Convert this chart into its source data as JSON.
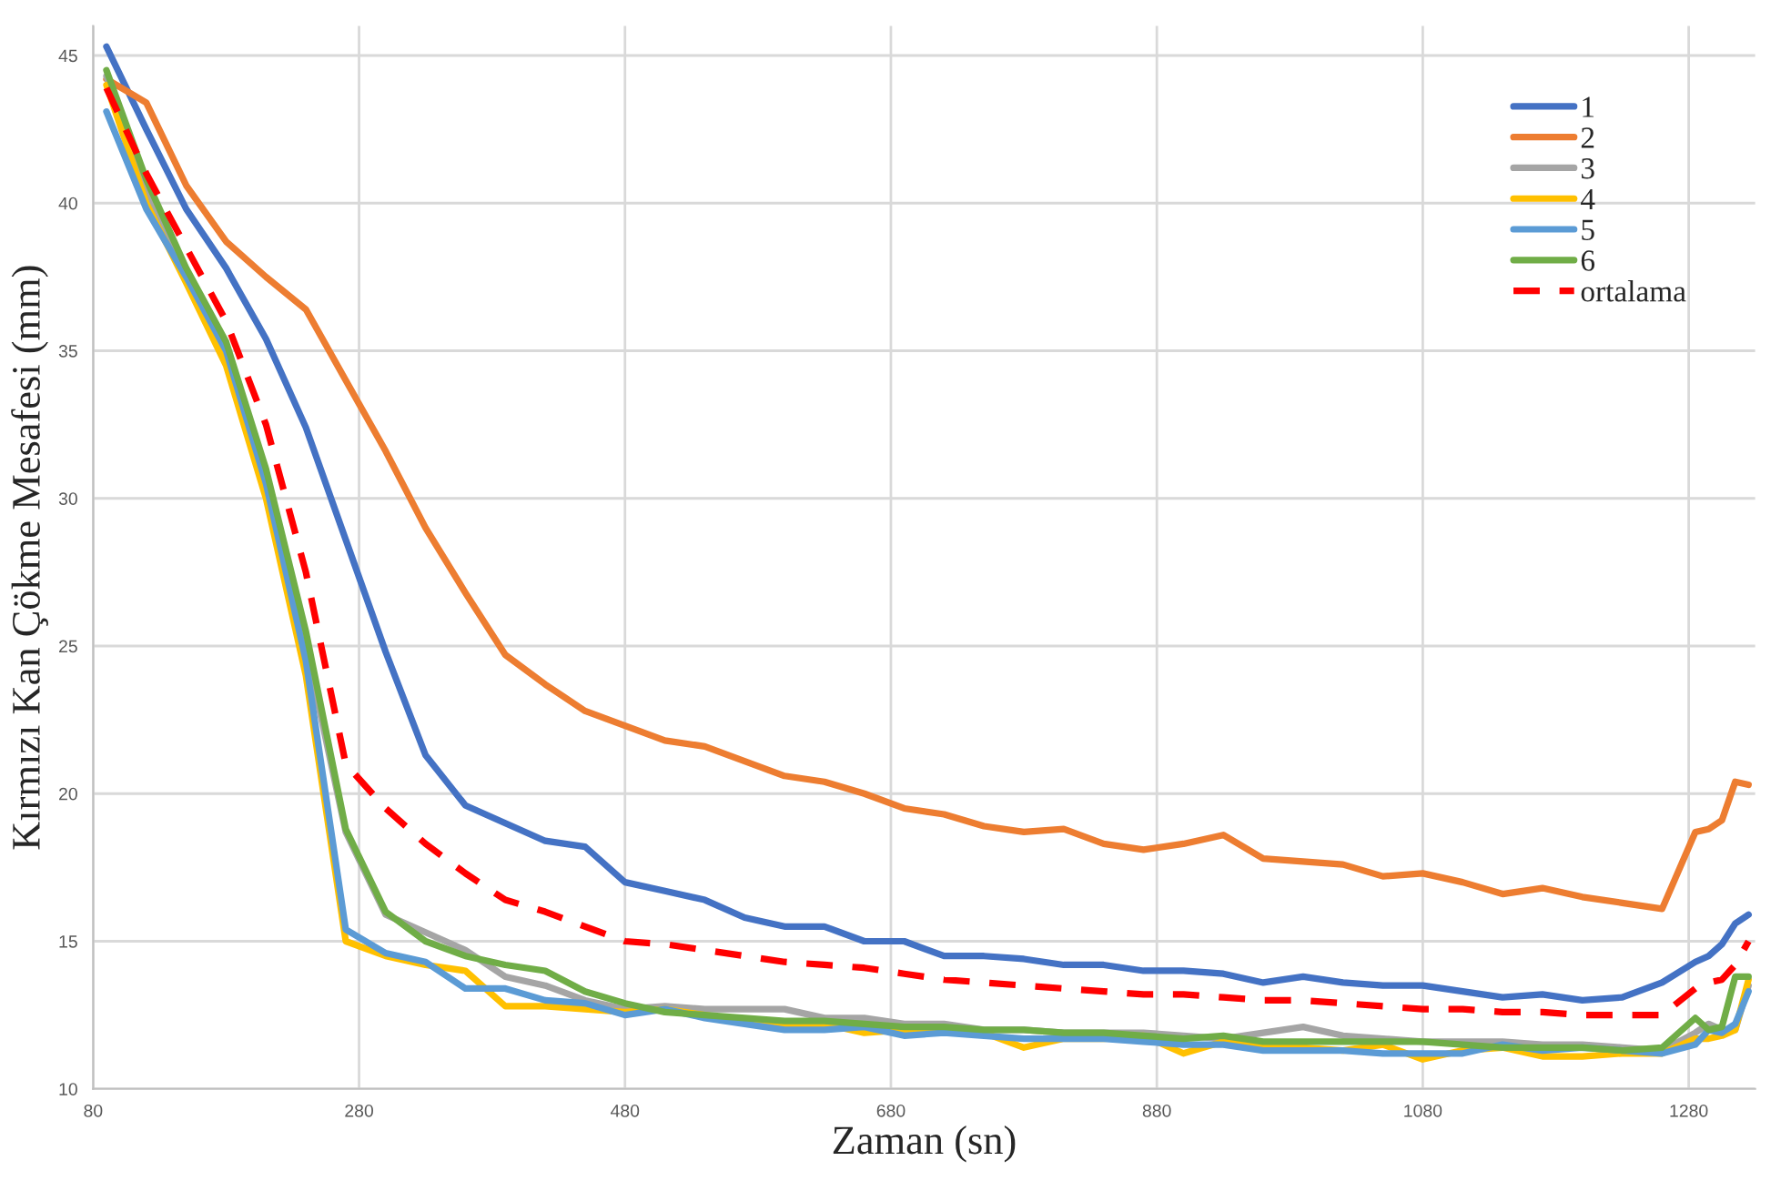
{
  "chart_data": {
    "type": "line",
    "xlabel": "Zaman (sn)",
    "ylabel": "Kırmızı Kan Çökme Mesafesi (mm)",
    "x": [
      90,
      120,
      150,
      180,
      210,
      240,
      270,
      300,
      330,
      360,
      390,
      420,
      450,
      480,
      510,
      540,
      570,
      600,
      630,
      660,
      690,
      720,
      750,
      780,
      810,
      840,
      870,
      900,
      930,
      960,
      990,
      1020,
      1050,
      1080,
      1110,
      1140,
      1170,
      1200,
      1230,
      1260,
      1285,
      1295,
      1305,
      1315,
      1325
    ],
    "xlim": [
      80,
      1330
    ],
    "xticks": [
      80,
      280,
      480,
      680,
      880,
      1080,
      1280
    ],
    "ylim": [
      10,
      46
    ],
    "yticks": [
      10,
      15,
      20,
      25,
      30,
      35,
      40,
      45
    ],
    "grid": true,
    "legend": "top right",
    "marker": "none",
    "series": [
      {
        "name": "1",
        "color": "#4472c4",
        "values": [
          45.3,
          42.5,
          39.8,
          37.8,
          35.4,
          32.4,
          28.6,
          24.8,
          21.3,
          19.6,
          19.0,
          18.4,
          18.2,
          17.0,
          16.7,
          16.4,
          15.8,
          15.5,
          15.5,
          15.0,
          15.0,
          14.5,
          14.5,
          14.4,
          14.2,
          14.2,
          14.0,
          14.0,
          13.9,
          13.6,
          13.8,
          13.6,
          13.5,
          13.5,
          13.3,
          13.1,
          13.2,
          13.0,
          13.1,
          13.6,
          14.3,
          14.5,
          14.9,
          15.6,
          15.9
        ]
      },
      {
        "name": "2",
        "color": "#ed7d31",
        "values": [
          44.2,
          43.4,
          40.6,
          38.7,
          37.5,
          36.4,
          34.0,
          31.6,
          29.0,
          26.8,
          24.7,
          23.7,
          22.8,
          22.3,
          21.8,
          21.6,
          21.1,
          20.6,
          20.4,
          20.0,
          19.5,
          19.3,
          18.9,
          18.7,
          18.8,
          18.3,
          18.1,
          18.3,
          18.6,
          17.8,
          17.7,
          17.6,
          17.2,
          17.3,
          17.0,
          16.6,
          16.8,
          16.5,
          16.3,
          16.1,
          18.7,
          18.8,
          19.1,
          20.4,
          20.3
        ]
      },
      {
        "name": "3",
        "color": "#a5a5a5",
        "values": [
          44.3,
          40.5,
          37.5,
          35.0,
          30.5,
          25.0,
          18.7,
          15.9,
          15.3,
          14.7,
          13.8,
          13.5,
          13.0,
          12.7,
          12.8,
          12.7,
          12.7,
          12.7,
          12.4,
          12.4,
          12.2,
          12.2,
          12.0,
          12.0,
          11.9,
          11.9,
          11.9,
          11.8,
          11.7,
          11.9,
          12.1,
          11.8,
          11.7,
          11.6,
          11.6,
          11.6,
          11.5,
          11.5,
          11.4,
          11.3,
          11.9,
          12.2,
          12.0,
          12.0,
          13.5
        ]
      },
      {
        "name": "4",
        "color": "#ffc000",
        "values": [
          44.0,
          40.0,
          37.3,
          34.5,
          30.0,
          24.0,
          15.0,
          14.5,
          14.2,
          14.0,
          12.8,
          12.8,
          12.7,
          12.6,
          12.7,
          12.5,
          12.3,
          12.2,
          12.2,
          11.9,
          12.0,
          11.9,
          11.9,
          11.4,
          11.7,
          11.7,
          11.8,
          11.2,
          11.6,
          11.4,
          11.4,
          11.3,
          11.5,
          11.0,
          11.3,
          11.4,
          11.1,
          11.1,
          11.2,
          11.2,
          11.7,
          11.7,
          11.8,
          12.0,
          13.7
        ]
      },
      {
        "name": "5",
        "color": "#5b9bd5",
        "values": [
          43.1,
          39.8,
          37.5,
          35.0,
          30.5,
          24.5,
          15.4,
          14.6,
          14.3,
          13.4,
          13.4,
          13.0,
          12.9,
          12.5,
          12.7,
          12.4,
          12.2,
          12.0,
          12.0,
          12.1,
          11.8,
          11.9,
          11.8,
          11.7,
          11.7,
          11.7,
          11.6,
          11.5,
          11.5,
          11.3,
          11.3,
          11.3,
          11.2,
          11.2,
          11.2,
          11.5,
          11.3,
          11.4,
          11.3,
          11.2,
          11.5,
          12.0,
          11.9,
          12.2,
          13.3
        ]
      },
      {
        "name": "6",
        "color": "#70ad47",
        "values": [
          44.5,
          40.8,
          37.8,
          35.3,
          31.0,
          25.5,
          18.8,
          16.0,
          15.0,
          14.5,
          14.2,
          14.0,
          13.3,
          12.9,
          12.6,
          12.5,
          12.4,
          12.3,
          12.3,
          12.2,
          12.1,
          12.1,
          12.0,
          12.0,
          11.9,
          11.9,
          11.8,
          11.7,
          11.8,
          11.6,
          11.6,
          11.6,
          11.6,
          11.6,
          11.5,
          11.4,
          11.4,
          11.4,
          11.3,
          11.4,
          12.4,
          12.0,
          12.1,
          13.8,
          13.8
        ]
      },
      {
        "name": "ortalama",
        "color": "#ff0000",
        "line_style": "dashed",
        "values": [
          43.9,
          41.0,
          38.5,
          36.0,
          32.5,
          27.5,
          21.0,
          19.5,
          18.3,
          17.3,
          16.4,
          16.0,
          15.5,
          15.0,
          14.9,
          14.7,
          14.5,
          14.3,
          14.2,
          14.1,
          13.9,
          13.7,
          13.6,
          13.5,
          13.4,
          13.3,
          13.2,
          13.2,
          13.1,
          13.0,
          13.0,
          12.9,
          12.8,
          12.7,
          12.7,
          12.6,
          12.6,
          12.5,
          12.5,
          12.5,
          13.4,
          13.6,
          13.7,
          14.2,
          15.0
        ]
      }
    ]
  }
}
